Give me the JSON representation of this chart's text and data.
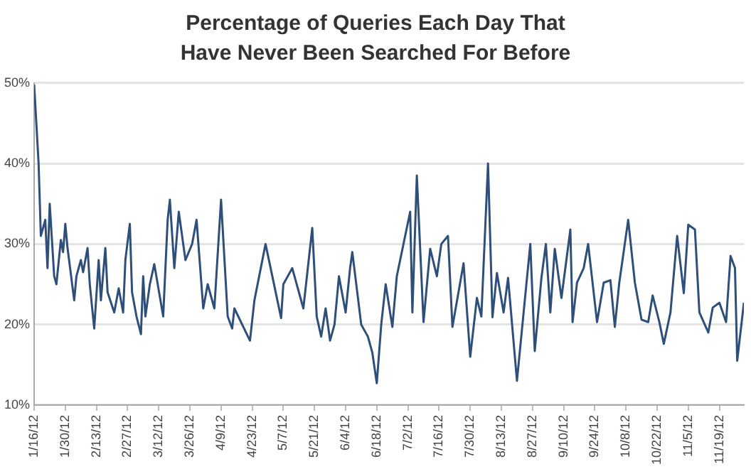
{
  "chart_data": {
    "type": "line",
    "title": "Percentage of Queries Each Day That Have Never Been Searched For Before",
    "x": [
      "--01-16",
      "--01-18",
      "--01-19",
      "--01-21",
      "--01-22",
      "--01-23",
      "--01-25",
      "--01-26",
      "--01-28",
      "--01-29",
      "--01-30",
      "--01-31",
      "--02-03",
      "--02-04",
      "--02-06",
      "--02-07",
      "--02-09",
      "--02-10",
      "--02-12",
      "--02-14",
      "--02-15",
      "--02-17",
      "--02-18",
      "--02-21",
      "--02-23",
      "--02-25",
      "--02-26",
      "--02-28",
      "--02-29",
      "--03-02",
      "--03-04",
      "--03-05",
      "--03-06",
      "--03-08",
      "--03-10",
      "--03-14",
      "--03-16",
      "--03-17",
      "--03-19",
      "--03-21",
      "--03-24",
      "--03-27",
      "--03-29",
      "--04-01",
      "--04-03",
      "--04-06",
      "--04-09",
      "--04-12",
      "--04-14",
      "--04-15",
      "--04-22",
      "--04-24",
      "--04-29",
      "--05-06",
      "--05-07",
      "--05-11",
      "--05-16",
      "--05-20",
      "--05-22",
      "--05-24",
      "--05-26",
      "--05-28",
      "--05-30",
      "--06-01",
      "--06-04",
      "--06-06",
      "--06-07",
      "--06-11",
      "--06-14",
      "--06-16",
      "--06-18",
      "--06-20",
      "--06-22",
      "--06-25",
      "--06-27",
      "--07-03",
      "--07-04",
      "--07-06",
      "--07-09",
      "--07-12",
      "--07-15",
      "--07-17",
      "--07-20",
      "--07-22",
      "--07-27",
      "--07-30",
      "--08-02",
      "--08-04",
      "--08-07",
      "--08-09",
      "--08-11",
      "--08-14",
      "--08-16",
      "--08-20",
      "--08-23",
      "--08-26",
      "--08-28",
      "--08-31",
      "--09-02",
      "--09-04",
      "--09-06",
      "--09-09",
      "--09-13",
      "--09-14",
      "--09-16",
      "--09-19",
      "--09-21",
      "--09-25",
      "--09-28",
      "--10-01",
      "--10-03",
      "--10-05",
      "--10-09",
      "--10-12",
      "--10-15",
      "--10-18",
      "--10-20",
      "--10-23",
      "--10-25",
      "--10-28",
      "--10-31",
      "--11-03",
      "--11-05",
      "--11-08",
      "--11-10",
      "--11-14",
      "--11-16",
      "--11-19",
      "--11-22",
      "--11-24",
      "--11-26",
      "--11-27",
      "--11-30"
    ],
    "series": [
      {
        "color": "#2e4f7a",
        "values": [
          49.8,
          40,
          31,
          33,
          27,
          35,
          26,
          25,
          30.5,
          29,
          32.5,
          29.5,
          23,
          26,
          28,
          26.5,
          29.5,
          25,
          19.5,
          28,
          23,
          29.5,
          24,
          21.5,
          24.5,
          21.5,
          28,
          32.5,
          24,
          21,
          18.8,
          26,
          21,
          25,
          27.5,
          21,
          33,
          35.5,
          27,
          34,
          28,
          30,
          33,
          22,
          25,
          22,
          35.5,
          21,
          19.5,
          22,
          18,
          23,
          30,
          20.8,
          25,
          27,
          22,
          32,
          21,
          18.5,
          22,
          18,
          20,
          26,
          21.5,
          27,
          29,
          20,
          18.5,
          16.5,
          12.7,
          20,
          25,
          19.7,
          26,
          34,
          21.5,
          38.5,
          20.3,
          29.4,
          26,
          30,
          31,
          19.7,
          27.6,
          16,
          23.3,
          21,
          40,
          20.9,
          26.4,
          21.5,
          25.8,
          13,
          21.5,
          30,
          16.7,
          25.8,
          30,
          21.5,
          29.4,
          23.3,
          31.8,
          20.3,
          25.2,
          27,
          30,
          20.3,
          25.2,
          25.5,
          19.7,
          25.2,
          33,
          25.2,
          20.6,
          20.3,
          23.6,
          20.3,
          17.6,
          21.5,
          31,
          23.9,
          32.4,
          31.8,
          21.5,
          19,
          22.1,
          22.7,
          20.3,
          28.5,
          27,
          15.5,
          22.7
        ]
      }
    ],
    "xlim": [
      "--01-16",
      "--11-30"
    ],
    "xticks": [
      {
        "value": "--01-16",
        "label": "1/16/12"
      },
      {
        "value": "--01-30",
        "label": "1/30/12"
      },
      {
        "value": "--02-13",
        "label": "2/13/12"
      },
      {
        "value": "--02-27",
        "label": "2/27/12"
      },
      {
        "value": "--03-12",
        "label": "3/12/12"
      },
      {
        "value": "--03-26",
        "label": "3/26/12"
      },
      {
        "value": "--04-09",
        "label": "4/9/12"
      },
      {
        "value": "--04-23",
        "label": "4/23/12"
      },
      {
        "value": "--05-07",
        "label": "5/7/12"
      },
      {
        "value": "--05-21",
        "label": "5/21/12"
      },
      {
        "value": "--06-04",
        "label": "6/4/12"
      },
      {
        "value": "--06-18",
        "label": "6/18/12"
      },
      {
        "value": "--07-02",
        "label": "7/2/12"
      },
      {
        "value": "--07-16",
        "label": "7/16/12"
      },
      {
        "value": "--07-30",
        "label": "7/30/12"
      },
      {
        "value": "--08-13",
        "label": "8/13/12"
      },
      {
        "value": "--08-27",
        "label": "8/27/12"
      },
      {
        "value": "--09-10",
        "label": "9/10/12"
      },
      {
        "value": "--09-24",
        "label": "9/24/12"
      },
      {
        "value": "--10-08",
        "label": "10/8/12"
      },
      {
        "value": "--10-22",
        "label": "10/22/12"
      },
      {
        "value": "--11-05",
        "label": "11/5/12"
      },
      {
        "value": "--11-19",
        "label": "11/19/12"
      }
    ],
    "ylim": [
      10,
      50
    ],
    "yticks": [
      {
        "value": 10,
        "label": "10%"
      },
      {
        "value": 20,
        "label": "20%"
      },
      {
        "value": 30,
        "label": "30%"
      },
      {
        "value": 40,
        "label": "40%"
      },
      {
        "value": 50,
        "label": "50%"
      }
    ],
    "grid": "y",
    "marker": "none",
    "line_style": "solid",
    "legend": false
  }
}
